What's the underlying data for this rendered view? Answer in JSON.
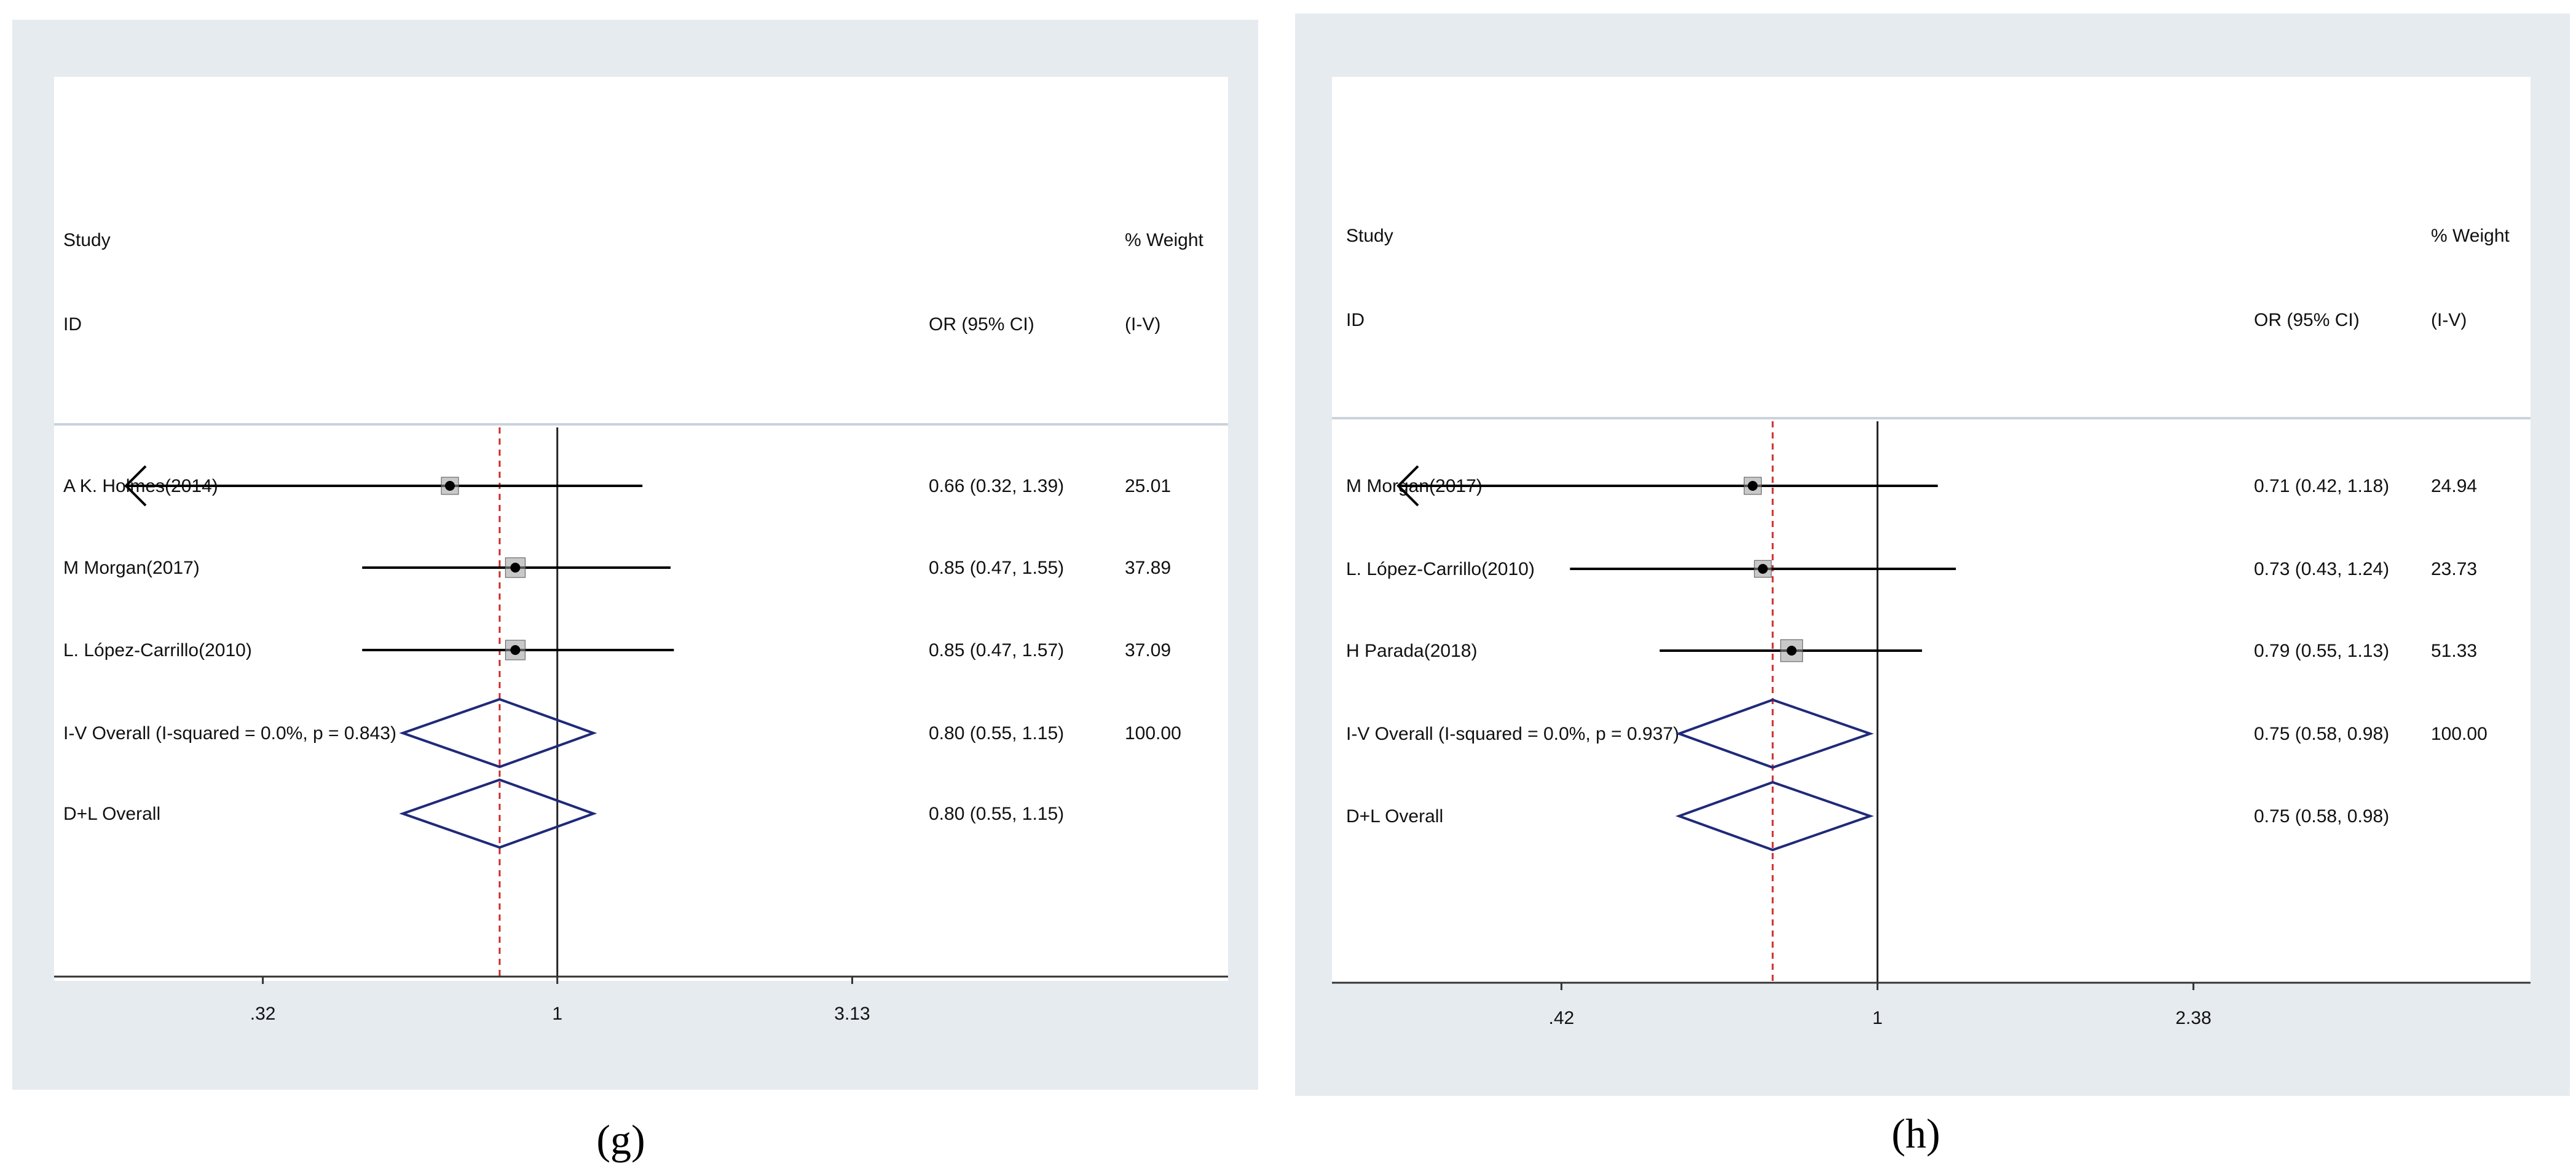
{
  "colors": {
    "panel_background": "#e6ebef",
    "plot_background": "#ffffff",
    "overall_line": "#cc2b2b",
    "diamond_stroke": "#1f2a7a",
    "null_line": "#222222"
  },
  "chart_data": [
    {
      "type": "forest",
      "panel_label": "(g)",
      "header": {
        "study": "Study",
        "id": "ID",
        "effect": "OR (95% CI)",
        "weight_top": "% Weight",
        "weight_bottom": "(I-V)"
      },
      "x_scale": "log",
      "xlim": [
        0.2,
        4.3
      ],
      "null_value": 1,
      "xticks": [
        {
          "value": 0.32,
          "label": ".32"
        },
        {
          "value": 1,
          "label": "1"
        },
        {
          "value": 3.13,
          "label": "3.13"
        }
      ],
      "studies": [
        {
          "name": "A K. Holmes(2014)",
          "or": 0.66,
          "lower": 0.32,
          "upper": 1.39,
          "text": "0.66 (0.32, 1.39)",
          "weight": "25.01",
          "arrow_left": true
        },
        {
          "name": "M Morgan(2017)",
          "or": 0.85,
          "lower": 0.47,
          "upper": 1.55,
          "text": "0.85 (0.47, 1.55)",
          "weight": "37.89",
          "arrow_left": false
        },
        {
          "name": "L. López-Carrillo(2010)",
          "or": 0.85,
          "lower": 0.47,
          "upper": 1.57,
          "text": "0.85 (0.47, 1.57)",
          "weight": "37.09",
          "arrow_left": false
        }
      ],
      "overall": [
        {
          "name": "I-V Overall  (I-squared = 0.0%, p = 0.843)",
          "or": 0.8,
          "lower": 0.55,
          "upper": 1.15,
          "text": "0.80 (0.55, 1.15)",
          "weight": "100.00"
        },
        {
          "name": "D+L Overall",
          "or": 0.8,
          "lower": 0.55,
          "upper": 1.15,
          "text": "0.80 (0.55, 1.15)",
          "weight": ""
        }
      ]
    },
    {
      "type": "forest",
      "panel_label": "(h)",
      "header": {
        "study": "Study",
        "id": "ID",
        "effect": "OR (95% CI)",
        "weight_top": "% Weight",
        "weight_bottom": "(I-V)"
      },
      "x_scale": "log",
      "xlim": [
        0.28,
        3.4
      ],
      "null_value": 1,
      "xticks": [
        {
          "value": 0.42,
          "label": ".42"
        },
        {
          "value": 1,
          "label": "1"
        },
        {
          "value": 2.38,
          "label": "2.38"
        }
      ],
      "studies": [
        {
          "name": "M Morgan(2017)",
          "or": 0.71,
          "lower": 0.42,
          "upper": 1.18,
          "text": "0.71 (0.42, 1.18)",
          "weight": "24.94",
          "arrow_left": true
        },
        {
          "name": "L. López-Carrillo(2010)",
          "or": 0.73,
          "lower": 0.43,
          "upper": 1.24,
          "text": "0.73 (0.43, 1.24)",
          "weight": "23.73",
          "arrow_left": false
        },
        {
          "name": "H Parada(2018)",
          "or": 0.79,
          "lower": 0.55,
          "upper": 1.13,
          "text": "0.79 (0.55, 1.13)",
          "weight": "51.33",
          "arrow_left": false
        }
      ],
      "overall": [
        {
          "name": "I-V Overall  (I-squared = 0.0%, p = 0.937)",
          "or": 0.75,
          "lower": 0.58,
          "upper": 0.98,
          "text": "0.75 (0.58, 0.98)",
          "weight": "100.00"
        },
        {
          "name": "D+L Overall",
          "or": 0.75,
          "lower": 0.58,
          "upper": 0.98,
          "text": "0.75 (0.58, 0.98)",
          "weight": ""
        }
      ]
    }
  ]
}
